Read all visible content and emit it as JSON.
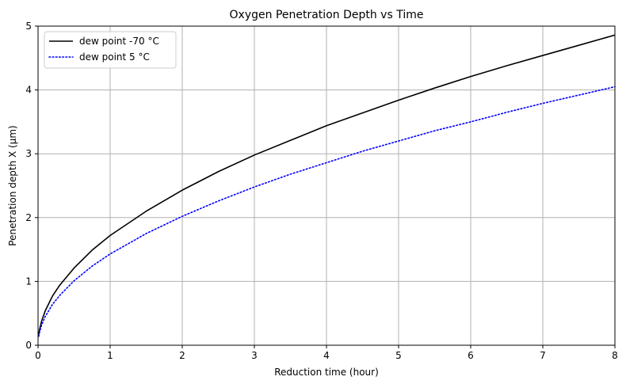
{
  "chart_data": {
    "type": "line",
    "title": "Oxygen Penetration Depth vs Time",
    "xlabel": "Reduction time (hour)",
    "ylabel": "Penetration depth X (μm)",
    "xlim": [
      0,
      8
    ],
    "ylim": [
      0,
      5
    ],
    "xticks": [
      "0",
      "1",
      "2",
      "3",
      "4",
      "5",
      "6",
      "7",
      "8"
    ],
    "yticks": [
      "0",
      "1",
      "2",
      "3",
      "4",
      "5"
    ],
    "grid": true,
    "legend_position": "upper-left",
    "x": [
      0.01,
      0.02,
      0.05,
      0.1,
      0.2,
      0.3,
      0.5,
      0.75,
      1,
      1.5,
      2,
      2.5,
      3,
      3.5,
      4,
      4.5,
      5,
      5.5,
      6,
      6.5,
      7,
      7.5,
      8
    ],
    "series": [
      {
        "name": "dew point -70 °C",
        "color": "#000000",
        "style": "solid",
        "values": [
          0.17,
          0.24,
          0.38,
          0.54,
          0.77,
          0.94,
          1.21,
          1.49,
          1.72,
          2.1,
          2.43,
          2.72,
          2.98,
          3.21,
          3.44,
          3.64,
          3.84,
          4.03,
          4.21,
          4.38,
          4.54,
          4.7,
          4.86
        ]
      },
      {
        "name": "dew point 5 °C",
        "color": "#0000ff",
        "style": "dotted",
        "values": [
          0.14,
          0.2,
          0.32,
          0.45,
          0.64,
          0.78,
          1.01,
          1.24,
          1.43,
          1.75,
          2.02,
          2.26,
          2.48,
          2.68,
          2.86,
          3.04,
          3.2,
          3.36,
          3.5,
          3.65,
          3.79,
          3.92,
          4.05
        ]
      }
    ]
  }
}
